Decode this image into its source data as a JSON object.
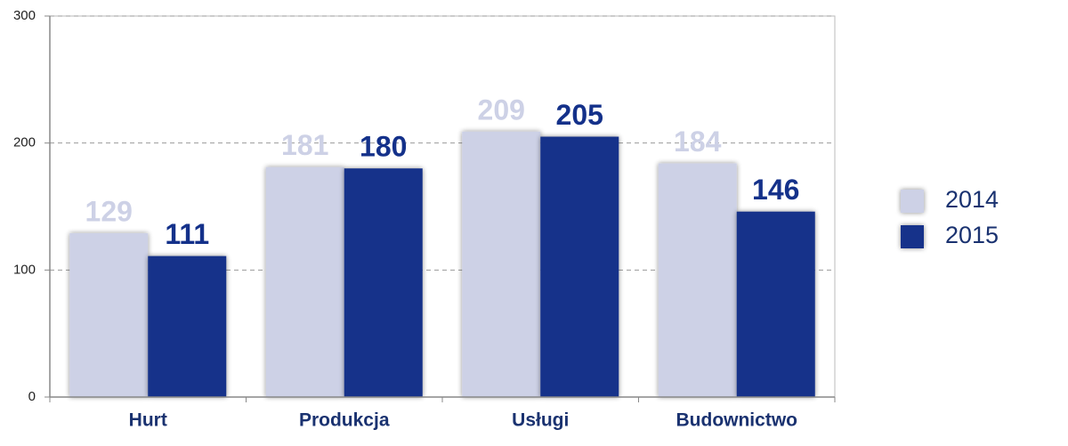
{
  "chart_data": {
    "type": "bar",
    "categories": [
      "Hurt",
      "Produkcja",
      "Usługi",
      "Budownictwo"
    ],
    "series": [
      {
        "name": "2014",
        "color": "#cdd1e6",
        "values": [
          129,
          181,
          209,
          184
        ]
      },
      {
        "name": "2015",
        "color": "#14318a",
        "values": [
          111,
          180,
          205,
          146
        ]
      }
    ],
    "ylim": [
      0,
      300
    ],
    "yticks": [
      0,
      100,
      200,
      300
    ],
    "grid": true,
    "legend": "right"
  }
}
